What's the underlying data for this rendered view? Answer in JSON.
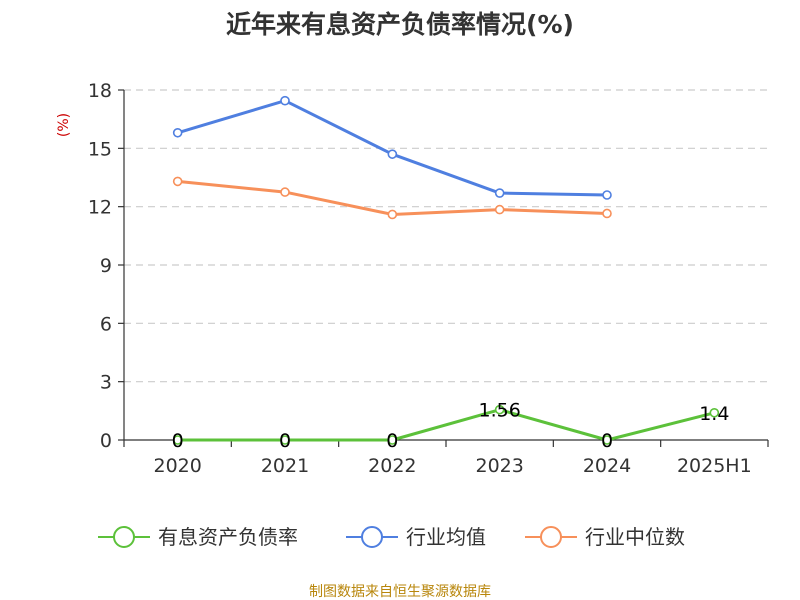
{
  "colors": {
    "series_1": "#5cc13a",
    "series_2": "#4f7fe0",
    "series_3": "#f7905a",
    "unit": "#cc0000",
    "source": "#b8860b"
  },
  "source_text": "制图数据来自恒生聚源数据库",
  "chart_data": {
    "type": "line",
    "title": "近年来有息资产负债率情况(%)",
    "ylabel": "(%)",
    "xlabel": "",
    "categories": [
      "2020",
      "2021",
      "2022",
      "2023",
      "2024",
      "2025H1"
    ],
    "ylim": [
      0,
      18
    ],
    "yticks": [
      0,
      3,
      6,
      9,
      12,
      15,
      18
    ],
    "grid": true,
    "legend_position": "bottom",
    "series": [
      {
        "name": "有息资产负债率",
        "values": [
          0,
          0,
          0,
          1.56,
          0,
          1.4
        ],
        "data_labels": [
          "0",
          "0",
          "0",
          "1.56",
          "0",
          "1.4"
        ]
      },
      {
        "name": "行业均值",
        "values": [
          15.8,
          17.45,
          14.7,
          12.7,
          12.6,
          null
        ]
      },
      {
        "name": "行业中位数",
        "values": [
          13.3,
          12.75,
          11.6,
          11.85,
          11.65,
          null
        ]
      }
    ]
  }
}
